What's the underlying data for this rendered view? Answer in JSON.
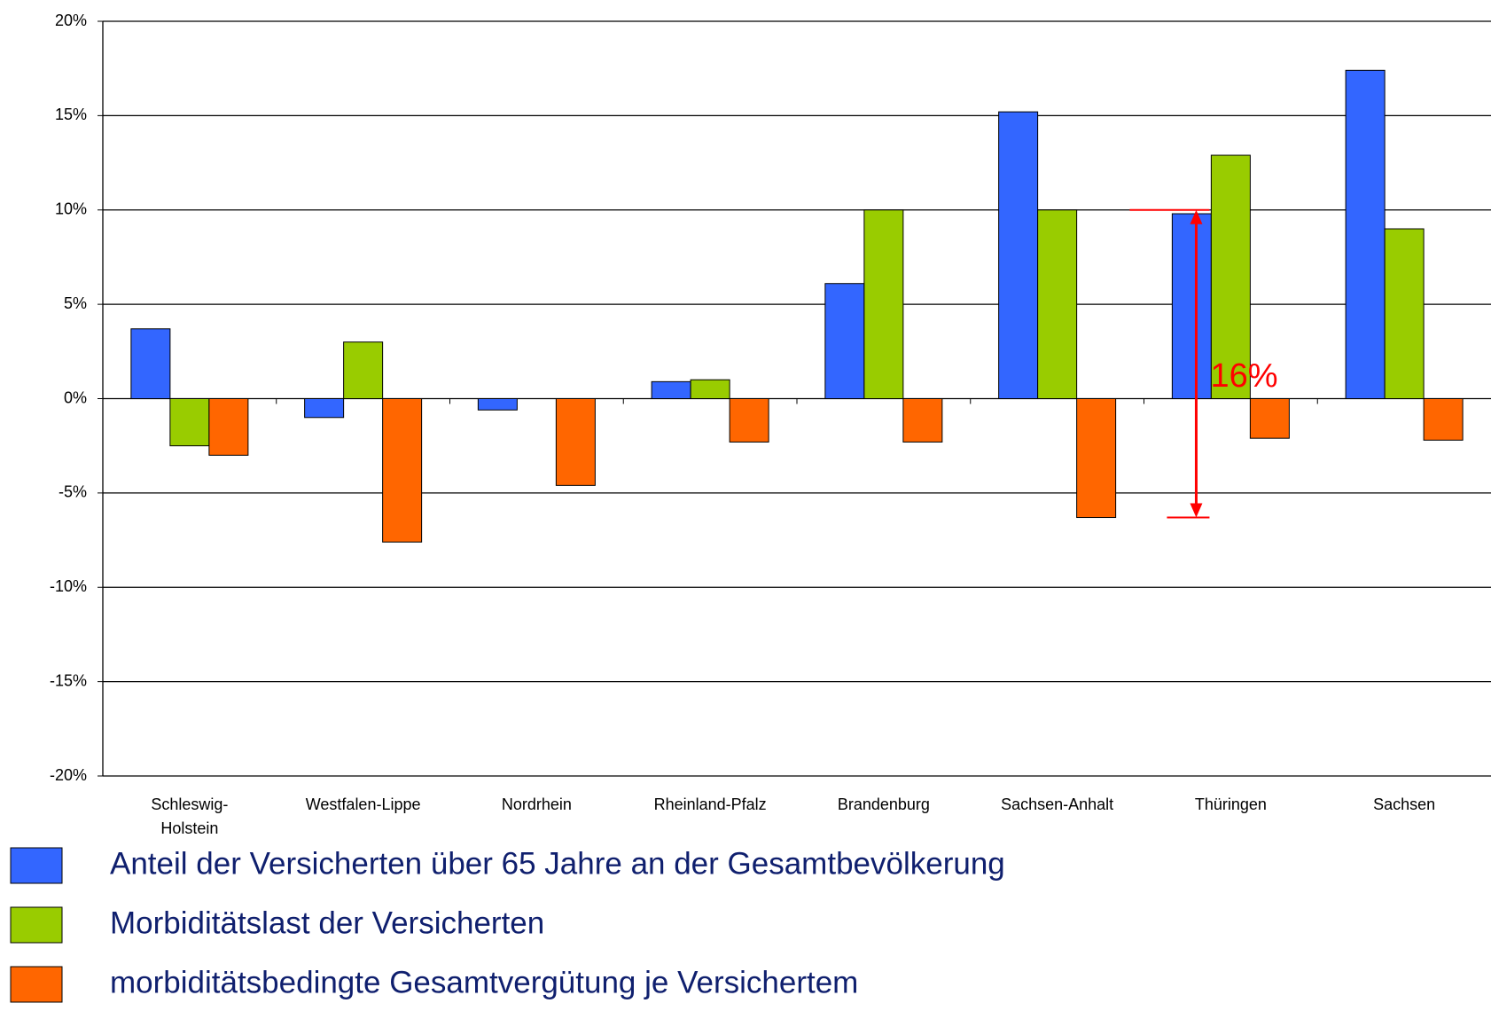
{
  "chart_data": {
    "type": "bar",
    "categories": [
      "Schleswig-\nHolstein",
      "Westfalen-Lippe",
      "Nordrhein",
      "Rheinland-Pfalz",
      "Brandenburg",
      "Sachsen-Anhalt",
      "Thüringen",
      "Sachsen"
    ],
    "series": [
      {
        "name": "Anteil der Versicherten über 65 Jahre an der Gesamtbevölkerung",
        "color": "#3366ff",
        "values": [
          3.7,
          -1.0,
          -0.6,
          0.9,
          6.1,
          15.2,
          9.8,
          17.4
        ]
      },
      {
        "name": "Morbiditätslast der Versicherten",
        "color": "#99cc00",
        "values": [
          -2.5,
          3.0,
          0,
          1.0,
          10.0,
          10.0,
          12.9,
          9.0
        ]
      },
      {
        "name": "morbiditätsbedingte Gesamtvergütung je Versichertem",
        "color": "#ff6600",
        "values": [
          -3.0,
          -7.6,
          -4.6,
          -2.3,
          -2.3,
          -6.3,
          -2.1,
          -2.2
        ]
      }
    ],
    "ylim": [
      -20,
      20
    ],
    "yticks": [
      {
        "value": -20,
        "label": "-20%"
      },
      {
        "value": -15,
        "label": "-15%"
      },
      {
        "value": -10,
        "label": "-10%"
      },
      {
        "value": -5,
        "label": "-5%"
      },
      {
        "value": 0,
        "label": "0%"
      },
      {
        "value": 5,
        "label": "5%"
      },
      {
        "value": 10,
        "label": "10%"
      },
      {
        "value": 15,
        "label": "15%"
      },
      {
        "value": 20,
        "label": "20%"
      }
    ],
    "grid": true,
    "annotation": {
      "text": "16%",
      "color": "#ff0000"
    }
  }
}
